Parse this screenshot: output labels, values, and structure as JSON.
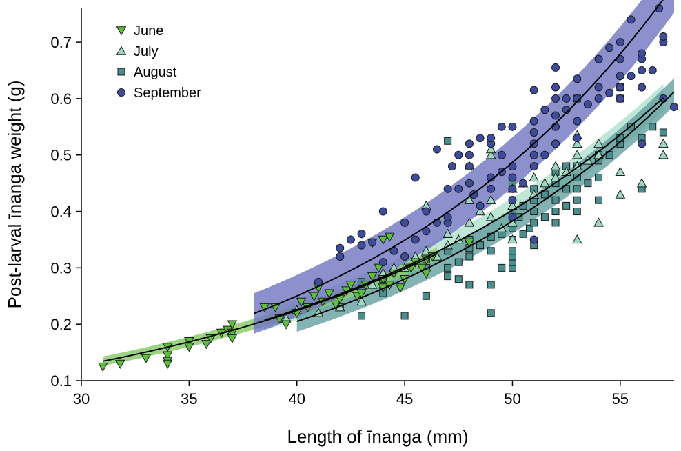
{
  "chart_data": {
    "type": "scatter",
    "title": "",
    "xlabel": "Length of īnanga (mm)",
    "ylabel": "Post-larval īnanga weight (g)",
    "xlim": [
      30,
      57.5
    ],
    "ylim": [
      0.1,
      0.76
    ],
    "xticks": [
      30,
      35,
      40,
      45,
      50,
      55
    ],
    "yticks": [
      0.1,
      0.2,
      0.3,
      0.4,
      0.5,
      0.6,
      0.7
    ],
    "ytick_labels": [
      "0.1",
      "0.2",
      "0.3",
      "0.4",
      "0.5",
      "0.6",
      "0.7"
    ],
    "legend_position": "top-left",
    "colors": {
      "june": "#5cbf3c",
      "july": "#9fd8c2",
      "august": "#4b8e8e",
      "september": "#3e4c9c",
      "june_band": "#8ccc6e",
      "july_band": "#a5dbc8",
      "august_band": "#5b9a9a",
      "september_band": "#6f74c0"
    },
    "series": [
      {
        "name": "June",
        "marker": "triangle-down",
        "color": "#5cbf3c",
        "fit": {
          "x_range": [
            31,
            46.5
          ],
          "a": 0.127,
          "b": 0.0569,
          "band": 0.012
        },
        "points": [
          [
            31,
            0.125
          ],
          [
            31.8,
            0.13
          ],
          [
            33,
            0.14
          ],
          [
            34,
            0.16
          ],
          [
            34,
            0.145
          ],
          [
            34,
            0.135
          ],
          [
            34,
            0.13
          ],
          [
            35,
            0.17
          ],
          [
            35,
            0.16
          ],
          [
            35.8,
            0.165
          ],
          [
            36,
            0.175
          ],
          [
            36.5,
            0.185
          ],
          [
            36.8,
            0.19
          ],
          [
            37,
            0.2
          ],
          [
            37,
            0.185
          ],
          [
            37,
            0.175
          ],
          [
            38.5,
            0.23
          ],
          [
            39,
            0.23
          ],
          [
            39.2,
            0.21
          ],
          [
            39.5,
            0.2
          ],
          [
            40,
            0.22
          ],
          [
            40.2,
            0.24
          ],
          [
            40.5,
            0.23
          ],
          [
            40.8,
            0.25
          ],
          [
            41,
            0.265
          ],
          [
            41.2,
            0.24
          ],
          [
            41.5,
            0.255
          ],
          [
            41.8,
            0.235
          ],
          [
            42,
            0.245
          ],
          [
            42.3,
            0.26
          ],
          [
            42.5,
            0.27
          ],
          [
            42.8,
            0.25
          ],
          [
            43,
            0.255
          ],
          [
            43.2,
            0.27
          ],
          [
            43.5,
            0.285
          ],
          [
            43.8,
            0.3
          ],
          [
            44,
            0.265
          ],
          [
            44,
            0.28
          ],
          [
            44.3,
            0.27
          ],
          [
            44.5,
            0.29
          ],
          [
            44.8,
            0.265
          ],
          [
            45,
            0.28
          ],
          [
            45.3,
            0.3
          ],
          [
            45.5,
            0.31
          ],
          [
            45.8,
            0.3
          ],
          [
            46,
            0.29
          ],
          [
            46,
            0.315
          ],
          [
            46.3,
            0.32
          ],
          [
            43.5,
            0.345
          ],
          [
            44,
            0.35
          ],
          [
            44.3,
            0.355
          ],
          [
            48,
            0.345
          ]
        ]
      },
      {
        "name": "July",
        "marker": "triangle-up",
        "color": "#9fd8c2",
        "fit": {
          "x_range": [
            38.5,
            57
          ],
          "a": 0.127,
          "b": 0.0576,
          "band": 0.022
        },
        "points": [
          [
            39.5,
            0.21
          ],
          [
            40,
            0.225
          ],
          [
            41,
            0.22
          ],
          [
            42,
            0.23
          ],
          [
            43,
            0.24
          ],
          [
            43.5,
            0.27
          ],
          [
            44,
            0.29
          ],
          [
            44.5,
            0.3
          ],
          [
            45,
            0.3
          ],
          [
            45.5,
            0.32
          ],
          [
            46,
            0.33
          ],
          [
            46.5,
            0.32
          ],
          [
            47,
            0.34
          ],
          [
            47,
            0.36
          ],
          [
            47.5,
            0.35
          ],
          [
            48,
            0.38
          ],
          [
            48,
            0.42
          ],
          [
            48,
            0.48
          ],
          [
            48.5,
            0.4
          ],
          [
            49,
            0.5
          ],
          [
            49,
            0.51
          ],
          [
            49,
            0.42
          ],
          [
            49,
            0.39
          ],
          [
            49.5,
            0.37
          ],
          [
            50,
            0.35
          ],
          [
            50,
            0.41
          ],
          [
            50,
            0.38
          ],
          [
            50,
            0.44
          ],
          [
            50.5,
            0.45
          ],
          [
            51,
            0.46
          ],
          [
            51,
            0.43
          ],
          [
            51.5,
            0.45
          ],
          [
            52,
            0.46
          ],
          [
            52,
            0.48
          ],
          [
            52.5,
            0.47
          ],
          [
            53,
            0.52
          ],
          [
            53,
            0.535
          ],
          [
            53,
            0.5
          ],
          [
            53,
            0.48
          ],
          [
            53,
            0.35
          ],
          [
            53.5,
            0.49
          ],
          [
            54,
            0.38
          ],
          [
            54,
            0.5
          ],
          [
            54,
            0.52
          ],
          [
            55,
            0.47
          ],
          [
            55,
            0.43
          ],
          [
            56,
            0.45
          ],
          [
            57,
            0.52
          ],
          [
            57,
            0.5
          ],
          [
            46,
            0.41
          ]
        ]
      },
      {
        "name": "August",
        "marker": "square",
        "color": "#4b8e8e",
        "fit": {
          "x_range": [
            40,
            57.5
          ],
          "a": 0.1097,
          "b": 0.0625,
          "band": 0.022
        },
        "points": [
          [
            42,
            0.23
          ],
          [
            43,
            0.215
          ],
          [
            43,
            0.26
          ],
          [
            43,
            0.275
          ],
          [
            44,
            0.26
          ],
          [
            44,
            0.255
          ],
          [
            44,
            0.28
          ],
          [
            45,
            0.215
          ],
          [
            46,
            0.25
          ],
          [
            46,
            0.3
          ],
          [
            46,
            0.315
          ],
          [
            47,
            0.285
          ],
          [
            47,
            0.3
          ],
          [
            47,
            0.33
          ],
          [
            47,
            0.525
          ],
          [
            47.5,
            0.28
          ],
          [
            47.5,
            0.31
          ],
          [
            48,
            0.27
          ],
          [
            48,
            0.32
          ],
          [
            48,
            0.335
          ],
          [
            48,
            0.35
          ],
          [
            48.5,
            0.34
          ],
          [
            49,
            0.22
          ],
          [
            49,
            0.27
          ],
          [
            49,
            0.33
          ],
          [
            49,
            0.355
          ],
          [
            49.5,
            0.3
          ],
          [
            49.5,
            0.36
          ],
          [
            50,
            0.3
          ],
          [
            50,
            0.31
          ],
          [
            50,
            0.32
          ],
          [
            50,
            0.33
          ],
          [
            50,
            0.35
          ],
          [
            50,
            0.37
          ],
          [
            50,
            0.38
          ],
          [
            50,
            0.4
          ],
          [
            50,
            0.42
          ],
          [
            50,
            0.45
          ],
          [
            50.3,
            0.39
          ],
          [
            50.5,
            0.36
          ],
          [
            50.5,
            0.41
          ],
          [
            50.8,
            0.37
          ],
          [
            51,
            0.34
          ],
          [
            51,
            0.38
          ],
          [
            51,
            0.4
          ],
          [
            51,
            0.42
          ],
          [
            51,
            0.44
          ],
          [
            51.5,
            0.39
          ],
          [
            51.5,
            0.43
          ],
          [
            52,
            0.38
          ],
          [
            52,
            0.4
          ],
          [
            52,
            0.42
          ],
          [
            52,
            0.45
          ],
          [
            52,
            0.47
          ],
          [
            52.5,
            0.41
          ],
          [
            52.5,
            0.44
          ],
          [
            53,
            0.4
          ],
          [
            53,
            0.42
          ],
          [
            53,
            0.44
          ],
          [
            53,
            0.46
          ],
          [
            53,
            0.48
          ],
          [
            53,
            0.6
          ],
          [
            53.5,
            0.45
          ],
          [
            54,
            0.49
          ],
          [
            54,
            0.5
          ],
          [
            54,
            0.46
          ],
          [
            54,
            0.42
          ],
          [
            55,
            0.6
          ],
          [
            55,
            0.62
          ],
          [
            55,
            0.52
          ],
          [
            55,
            0.53
          ],
          [
            55.5,
            0.55
          ],
          [
            56,
            0.44
          ],
          [
            56,
            0.53
          ],
          [
            56.5,
            0.55
          ],
          [
            57,
            0.54
          ],
          [
            54.5,
            0.5
          ],
          [
            52.5,
            0.48
          ]
        ]
      },
      {
        "name": "September",
        "marker": "circle",
        "color": "#3e4c9c",
        "fit": {
          "x_range": [
            38,
            57.5
          ],
          "a": 0.1285,
          "b": 0.0666,
          "band": 0.045
        },
        "points": [
          [
            41,
            0.275
          ],
          [
            42,
            0.335
          ],
          [
            42,
            0.32
          ],
          [
            42.5,
            0.35
          ],
          [
            43,
            0.34
          ],
          [
            43,
            0.36
          ],
          [
            43.5,
            0.345
          ],
          [
            44,
            0.4
          ],
          [
            44,
            0.31
          ],
          [
            44.5,
            0.33
          ],
          [
            45,
            0.32
          ],
          [
            45,
            0.38
          ],
          [
            45.5,
            0.46
          ],
          [
            45.5,
            0.35
          ],
          [
            46,
            0.4
          ],
          [
            46,
            0.365
          ],
          [
            46.5,
            0.38
          ],
          [
            46.5,
            0.51
          ],
          [
            47,
            0.38
          ],
          [
            47,
            0.39
          ],
          [
            47,
            0.44
          ],
          [
            47.2,
            0.48
          ],
          [
            47.5,
            0.44
          ],
          [
            47.5,
            0.5
          ],
          [
            48,
            0.45
          ],
          [
            48,
            0.48
          ],
          [
            48,
            0.5
          ],
          [
            48,
            0.52
          ],
          [
            48.2,
            0.43
          ],
          [
            48.5,
            0.41
          ],
          [
            48.5,
            0.53
          ],
          [
            49,
            0.44
          ],
          [
            49,
            0.46
          ],
          [
            49,
            0.52
          ],
          [
            49,
            0.53
          ],
          [
            49.5,
            0.47
          ],
          [
            49.5,
            0.5
          ],
          [
            49.5,
            0.55
          ],
          [
            50,
            0.39
          ],
          [
            50,
            0.42
          ],
          [
            50,
            0.44
          ],
          [
            50,
            0.46
          ],
          [
            50,
            0.48
          ],
          [
            50,
            0.55
          ],
          [
            50.5,
            0.45
          ],
          [
            51,
            0.48
          ],
          [
            51,
            0.5
          ],
          [
            51,
            0.52
          ],
          [
            51,
            0.54
          ],
          [
            51,
            0.56
          ],
          [
            51,
            0.615
          ],
          [
            51,
            0.35
          ],
          [
            51.5,
            0.5
          ],
          [
            51.5,
            0.58
          ],
          [
            52,
            0.52
          ],
          [
            52,
            0.55
          ],
          [
            52,
            0.57
          ],
          [
            52,
            0.6
          ],
          [
            52,
            0.62
          ],
          [
            52,
            0.655
          ],
          [
            52.5,
            0.58
          ],
          [
            52.5,
            0.6
          ],
          [
            53,
            0.56
          ],
          [
            53,
            0.6
          ],
          [
            53,
            0.635
          ],
          [
            53,
            0.53
          ],
          [
            53.5,
            0.59
          ],
          [
            54,
            0.62
          ],
          [
            54,
            0.67
          ],
          [
            54,
            0.6
          ],
          [
            54.5,
            0.69
          ],
          [
            54.5,
            0.61
          ],
          [
            55,
            0.6
          ],
          [
            55,
            0.62
          ],
          [
            55,
            0.64
          ],
          [
            55,
            0.67
          ],
          [
            55,
            0.7
          ],
          [
            55.5,
            0.74
          ],
          [
            55.5,
            0.64
          ],
          [
            56,
            0.65
          ],
          [
            56,
            0.67
          ],
          [
            56,
            0.68
          ],
          [
            56,
            0.62
          ],
          [
            56.5,
            0.65
          ],
          [
            56.8,
            0.76
          ],
          [
            57,
            0.7
          ],
          [
            57,
            0.71
          ],
          [
            57,
            0.6
          ],
          [
            57.5,
            0.585
          ],
          [
            56,
            0.52
          ]
        ]
      }
    ]
  }
}
